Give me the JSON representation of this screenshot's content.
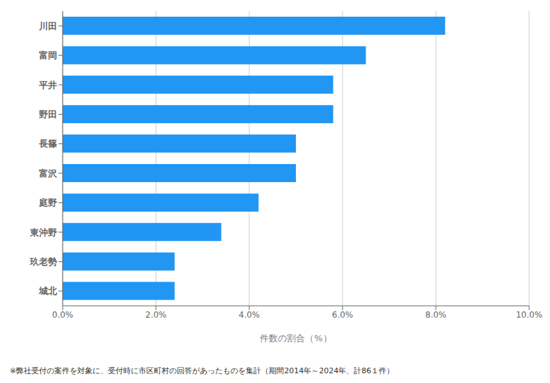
{
  "chart_data": {
    "type": "bar",
    "orientation": "horizontal",
    "categories": [
      "城北",
      "玖老勢",
      "東沖野",
      "庭野",
      "富沢",
      "長篠",
      "野田",
      "平井",
      "富岡",
      "川田"
    ],
    "values": [
      2.4,
      2.4,
      3.4,
      4.2,
      5.0,
      5.0,
      5.8,
      5.8,
      6.5,
      8.2
    ],
    "color": "#2196F3",
    "xlabel": "件数の割合（%）",
    "xlim": [
      0,
      10
    ],
    "xticks": [
      {
        "value": 0,
        "label": "0.0%"
      },
      {
        "value": 2,
        "label": "2.0%"
      },
      {
        "value": 4,
        "label": "4.0%"
      },
      {
        "value": 6,
        "label": "6.0%"
      },
      {
        "value": 8,
        "label": "8.0%"
      },
      {
        "value": 10,
        "label": "10.0%"
      }
    ],
    "grid": true,
    "annotations": [
      "※弊社受付の案件を対象に、受付時に市区町村の回答があったものを集計（期間2014年～2024年、計86１件）"
    ]
  }
}
